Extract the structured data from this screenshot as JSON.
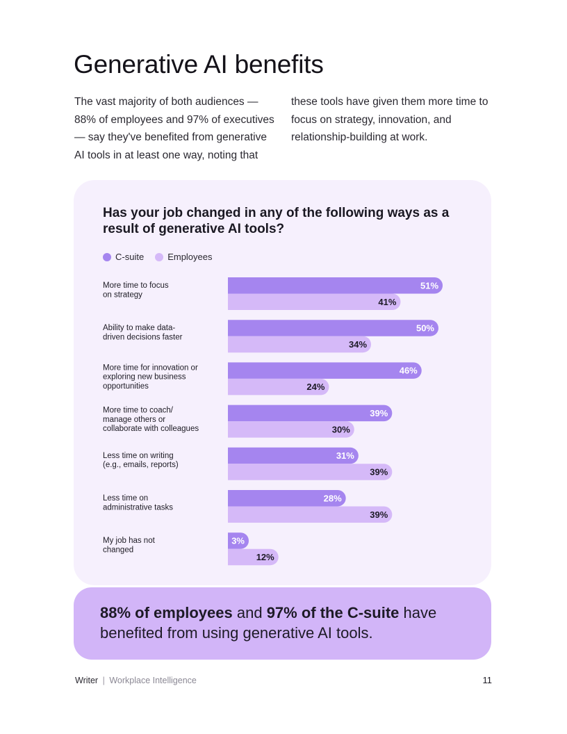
{
  "page": {
    "title": "Generative AI benefits",
    "intro": "The vast majority of both audiences — 88% of employees and 97% of executives — say they've benefited from generative AI tools in at least one way, noting that these tools have given them more time to focus on strategy, innovation, and relationship-building at work."
  },
  "chart_data": {
    "type": "bar",
    "orientation": "horizontal",
    "title": "Has your job changed in any of the following ways as a result of generative AI tools?",
    "legend_position": "top-left",
    "grid": false,
    "xlim": [
      0,
      60
    ],
    "value_suffix": "%",
    "categories": [
      "More time to focus on strategy",
      "Ability to make data-driven decisions faster",
      "More time for innovation or exploring new business opportunities",
      "More time to coach/ manage others or collaborate with colleagues",
      "Less time on writing (e.g., emails, reports)",
      "Less time on administrative tasks",
      "My job has not changed"
    ],
    "category_lines": [
      [
        "More time to focus",
        "on strategy"
      ],
      [
        "Ability to make data-",
        "driven decisions faster"
      ],
      [
        "More time for innovation or",
        "exploring new business",
        "opportunities"
      ],
      [
        "More time to coach/",
        "manage others or",
        "collaborate with colleagues"
      ],
      [
        "Less time on writing",
        "(e.g., emails, reports)"
      ],
      [
        "Less time on",
        "administrative tasks"
      ],
      [
        "My job has not",
        "changed"
      ]
    ],
    "series": [
      {
        "name": "C-suite",
        "color": "#a585ef",
        "label_color": "#ffffff",
        "values": [
          51,
          50,
          46,
          39,
          31,
          28,
          3
        ]
      },
      {
        "name": "Employees",
        "color": "#d5b9f8",
        "label_color": "#1d1a26",
        "values": [
          41,
          34,
          24,
          30,
          39,
          39,
          12
        ]
      }
    ]
  },
  "callout": {
    "part1": "88% of employees",
    "part2": " and ",
    "part3": "97% of the C-suite",
    "part4": " have benefited from using generative AI tools."
  },
  "footer": {
    "brand": "Writer",
    "separator": "|",
    "subtitle": "Workplace Intelligence",
    "page_number": "11"
  }
}
